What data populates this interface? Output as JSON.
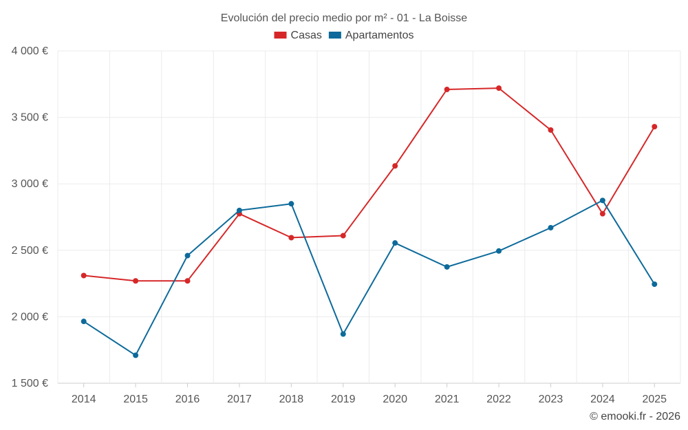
{
  "chart_data": {
    "type": "line",
    "title": "Evolución del precio medio por m² - 01 - La Boisse",
    "categories": [
      "2014",
      "2015",
      "2016",
      "2017",
      "2018",
      "2019",
      "2020",
      "2021",
      "2022",
      "2023",
      "2024",
      "2025"
    ],
    "series": [
      {
        "name": "Casas",
        "color": "#d62728",
        "values": [
          2310,
          2270,
          2270,
          2775,
          2595,
          2610,
          3135,
          3710,
          3720,
          3405,
          2775,
          3430
        ]
      },
      {
        "name": "Apartamentos",
        "color": "#0d6a9a",
        "values": [
          1965,
          1710,
          2460,
          2800,
          2850,
          1870,
          2555,
          2375,
          2495,
          2670,
          2875,
          2245
        ]
      }
    ],
    "ylim": [
      1500,
      4000
    ],
    "yticks": [
      {
        "value": 1500,
        "label": "1 500 €"
      },
      {
        "value": 2000,
        "label": "2 000 €"
      },
      {
        "value": 2500,
        "label": "2 500 €"
      },
      {
        "value": 3000,
        "label": "3 000 €"
      },
      {
        "value": 3500,
        "label": "3 500 €"
      },
      {
        "value": 4000,
        "label": "4 000 €"
      }
    ],
    "xlabel": "",
    "ylabel": "",
    "grid": true,
    "legend_position": "top-center"
  },
  "credit": "© emooki.fr - 2026"
}
